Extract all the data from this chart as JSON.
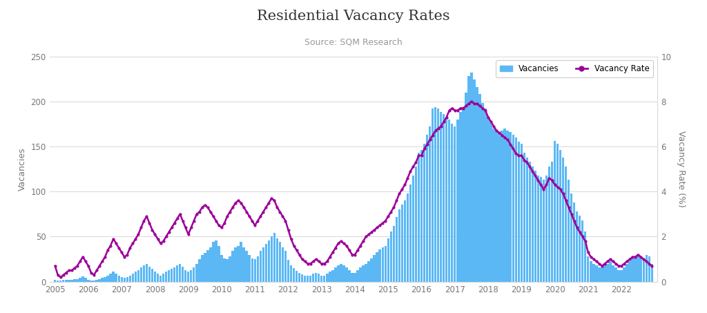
{
  "title": "Residential Vacancy Rates",
  "subtitle": "Source: SQM Research",
  "ylabel_left": "Vacancies",
  "ylabel_right": "Vacancy Rate (%)",
  "legend_labels": [
    "Vacancies",
    "Vacancy Rate"
  ],
  "bar_color": "#5bb8f5",
  "line_color": "#9b0099",
  "ylim_left": [
    0,
    250
  ],
  "ylim_right": [
    0,
    10
  ],
  "yticks_left": [
    0,
    50,
    100,
    150,
    200,
    250
  ],
  "yticks_right": [
    0,
    2,
    4,
    6,
    8,
    10
  ],
  "background_color": "#ffffff",
  "grid_color": "#d8d8d8",
  "title_fontsize": 15,
  "subtitle_fontsize": 9,
  "xtick_years": [
    "2005",
    "2006",
    "2007",
    "2008",
    "2009",
    "2010",
    "2011",
    "2012",
    "2013",
    "2014",
    "2015",
    "2016",
    "2017",
    "2018",
    "2019",
    "2020",
    "2021",
    "2022"
  ],
  "vacancies": [
    2,
    1,
    1,
    2,
    2,
    2,
    2,
    3,
    3,
    4,
    6,
    4,
    2,
    1,
    1,
    2,
    3,
    4,
    5,
    7,
    9,
    11,
    9,
    7,
    5,
    4,
    5,
    7,
    9,
    11,
    13,
    16,
    18,
    20,
    17,
    14,
    11,
    9,
    7,
    9,
    11,
    13,
    14,
    16,
    18,
    20,
    17,
    13,
    11,
    13,
    16,
    20,
    25,
    30,
    32,
    35,
    38,
    44,
    46,
    40,
    30,
    26,
    25,
    28,
    34,
    38,
    40,
    44,
    38,
    34,
    30,
    26,
    25,
    28,
    34,
    38,
    42,
    46,
    50,
    54,
    48,
    44,
    38,
    34,
    24,
    18,
    15,
    12,
    10,
    8,
    7,
    7,
    7,
    9,
    10,
    9,
    7,
    7,
    9,
    11,
    13,
    16,
    18,
    20,
    18,
    16,
    13,
    10,
    10,
    13,
    16,
    18,
    20,
    23,
    26,
    30,
    33,
    36,
    38,
    40,
    48,
    56,
    62,
    72,
    80,
    86,
    90,
    98,
    108,
    118,
    128,
    143,
    146,
    153,
    163,
    172,
    192,
    194,
    192,
    188,
    186,
    183,
    180,
    175,
    172,
    180,
    188,
    194,
    210,
    228,
    232,
    224,
    216,
    208,
    198,
    192,
    183,
    176,
    170,
    168,
    166,
    168,
    170,
    168,
    166,
    163,
    160,
    155,
    153,
    143,
    138,
    133,
    128,
    123,
    118,
    116,
    113,
    118,
    128,
    133,
    156,
    153,
    146,
    138,
    128,
    113,
    98,
    88,
    78,
    73,
    68,
    56,
    28,
    23,
    20,
    18,
    16,
    16,
    18,
    20,
    23,
    18,
    16,
    13,
    13,
    16,
    20,
    23,
    26,
    26,
    28,
    28,
    26,
    30,
    28,
    20
  ],
  "vacancy_rate": [
    0.7,
    0.3,
    0.2,
    0.3,
    0.4,
    0.5,
    0.5,
    0.6,
    0.7,
    0.9,
    1.1,
    0.9,
    0.7,
    0.4,
    0.3,
    0.5,
    0.7,
    0.9,
    1.1,
    1.4,
    1.6,
    1.9,
    1.7,
    1.5,
    1.3,
    1.1,
    1.2,
    1.5,
    1.7,
    1.9,
    2.1,
    2.4,
    2.7,
    2.9,
    2.6,
    2.3,
    2.1,
    1.9,
    1.7,
    1.8,
    2.0,
    2.2,
    2.4,
    2.6,
    2.8,
    3.0,
    2.7,
    2.4,
    2.1,
    2.4,
    2.7,
    3.0,
    3.1,
    3.3,
    3.4,
    3.3,
    3.1,
    2.9,
    2.7,
    2.5,
    2.4,
    2.6,
    2.9,
    3.1,
    3.3,
    3.5,
    3.6,
    3.5,
    3.3,
    3.1,
    2.9,
    2.7,
    2.5,
    2.7,
    2.9,
    3.1,
    3.3,
    3.5,
    3.7,
    3.6,
    3.3,
    3.1,
    2.9,
    2.7,
    2.3,
    1.9,
    1.6,
    1.4,
    1.2,
    1.0,
    0.9,
    0.8,
    0.8,
    0.9,
    1.0,
    0.9,
    0.8,
    0.8,
    0.9,
    1.1,
    1.3,
    1.5,
    1.7,
    1.8,
    1.7,
    1.6,
    1.4,
    1.2,
    1.2,
    1.4,
    1.6,
    1.8,
    2.0,
    2.1,
    2.2,
    2.3,
    2.4,
    2.5,
    2.6,
    2.7,
    2.9,
    3.1,
    3.3,
    3.6,
    3.9,
    4.1,
    4.3,
    4.6,
    4.9,
    5.1,
    5.3,
    5.6,
    5.6,
    5.9,
    6.1,
    6.3,
    6.5,
    6.7,
    6.8,
    6.9,
    7.1,
    7.3,
    7.6,
    7.7,
    7.6,
    7.6,
    7.7,
    7.7,
    7.8,
    7.9,
    8.0,
    7.9,
    7.9,
    7.8,
    7.7,
    7.6,
    7.3,
    7.1,
    6.9,
    6.7,
    6.6,
    6.5,
    6.4,
    6.3,
    6.1,
    5.9,
    5.7,
    5.6,
    5.6,
    5.4,
    5.3,
    5.1,
    4.9,
    4.7,
    4.5,
    4.3,
    4.1,
    4.3,
    4.6,
    4.5,
    4.3,
    4.2,
    4.1,
    3.9,
    3.6,
    3.3,
    3.0,
    2.7,
    2.4,
    2.2,
    2.0,
    1.8,
    1.3,
    1.1,
    1.0,
    0.9,
    0.8,
    0.7,
    0.8,
    0.9,
    1.0,
    0.9,
    0.8,
    0.7,
    0.7,
    0.8,
    0.9,
    1.0,
    1.1,
    1.1,
    1.2,
    1.1,
    1.0,
    0.9,
    0.8,
    0.7
  ]
}
